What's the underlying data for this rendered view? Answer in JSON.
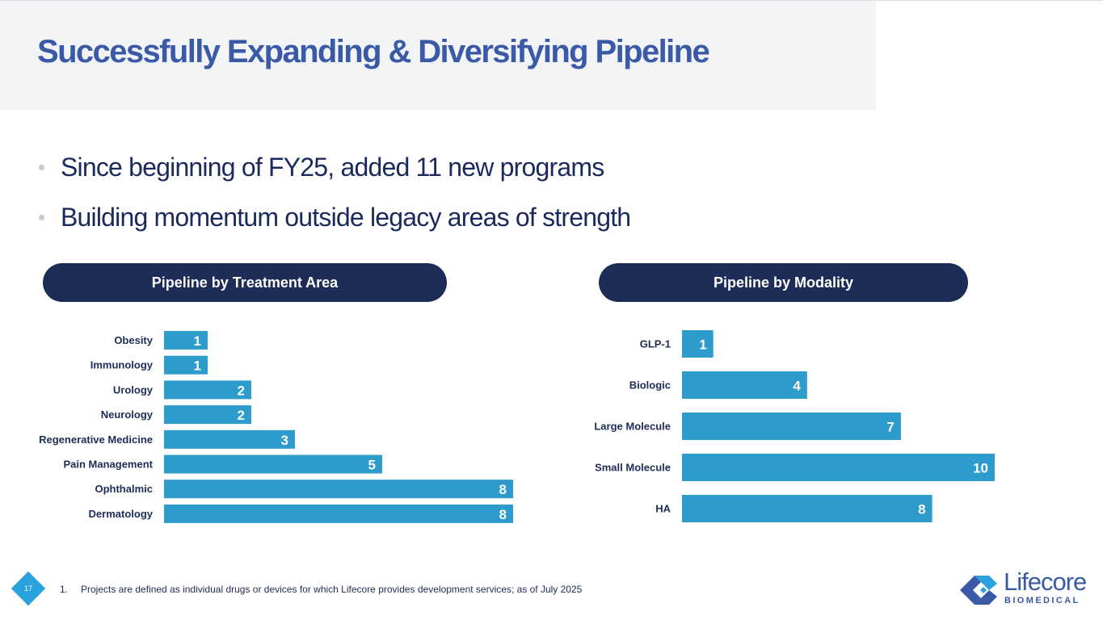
{
  "slide": {
    "title": "Successfully Expanding & Diversifying Pipeline",
    "bullets": [
      "Since beginning of FY25, added 11 new programs",
      "Building momentum outside legacy areas of strength"
    ],
    "page_number": "17",
    "footnote": {
      "number": "1.",
      "text": "Projects are defined as individual drugs or devices for which Lifecore provides development services; as of July 2025"
    },
    "logo": {
      "name": "Lifecore",
      "subtitle": "BIOMEDICAL"
    },
    "colors": {
      "title": "#3a5aa8",
      "pill": "#1d2d57",
      "bar": "#2e9bcd",
      "label": "#1d2d57"
    }
  },
  "chart_data": [
    {
      "type": "bar",
      "orientation": "horizontal",
      "title": "Pipeline by Treatment Area",
      "categories": [
        "Obesity",
        "Immunology",
        "Urology",
        "Neurology",
        "Regenerative Medicine",
        "Pain Management",
        "Ophthalmic",
        "Dermatology"
      ],
      "values": [
        1,
        1,
        2,
        2,
        3,
        5,
        8,
        8
      ],
      "data_labels": true,
      "xlim": [
        0,
        8
      ],
      "grid": false,
      "legend": "none"
    },
    {
      "type": "bar",
      "orientation": "horizontal",
      "title": "Pipeline by Modality",
      "categories": [
        "GLP-1",
        "Biologic",
        "Large Molecule",
        "Small Molecule",
        "HA"
      ],
      "values": [
        1,
        4,
        7,
        10,
        8
      ],
      "data_labels": true,
      "xlim": [
        0,
        10
      ],
      "grid": false,
      "legend": "none"
    }
  ]
}
